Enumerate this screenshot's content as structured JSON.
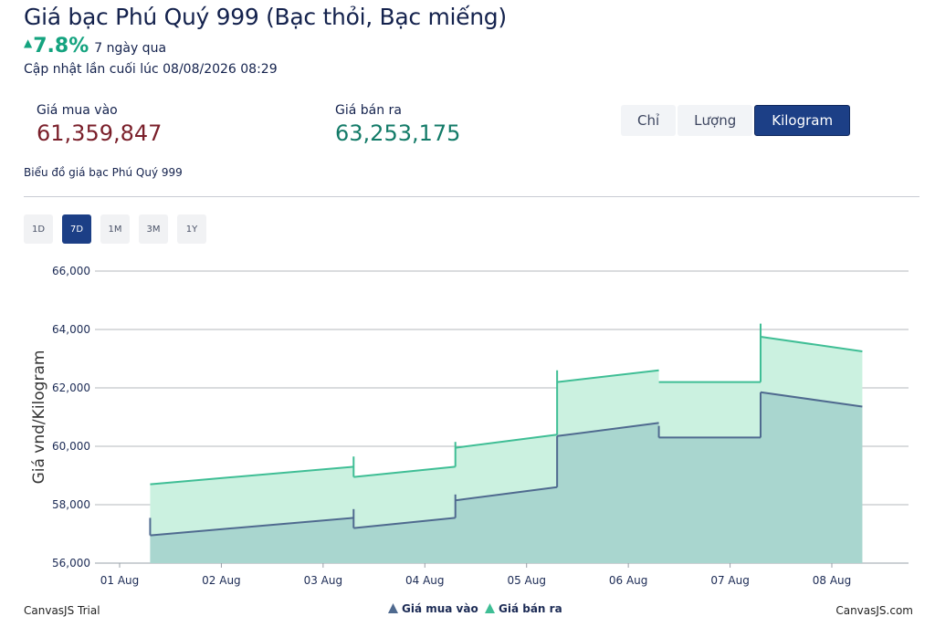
{
  "header": {
    "title": "Giá bạc Phú Quý 999 (Bạc thỏi, Bạc miếng)",
    "change_arrow": "▲",
    "change_pct": "7.8%",
    "change_period": "7 ngày qua",
    "updated": "Cập nhật lần cuối lúc 08/08/2026 08:29"
  },
  "stats": {
    "buy_label": "Giá mua vào",
    "buy_value": "61,359,847",
    "sell_label": "Giá bán ra",
    "sell_value": "63,253,175"
  },
  "units": {
    "options": [
      "Chỉ",
      "Lượng",
      "Kilogram"
    ],
    "selected": "Kilogram"
  },
  "chart_caption": "Biểu đồ giá bạc Phú Quý 999",
  "ranges": {
    "options": [
      "1D",
      "7D",
      "1M",
      "3M",
      "1Y"
    ],
    "selected": "7D"
  },
  "chart_data": {
    "type": "area",
    "x_categories": [
      "01 Aug",
      "02 Aug",
      "03 Aug",
      "04 Aug",
      "05 Aug",
      "06 Aug",
      "07 Aug",
      "08 Aug"
    ],
    "x_range": [
      0,
      7
    ],
    "ylabel": "Giá vnd/Kilogram",
    "y_ticks": [
      "56,000",
      "58,000",
      "60,000",
      "62,000",
      "64,000",
      "66,000"
    ],
    "y_range": [
      56000,
      66000
    ],
    "grid": true,
    "legend_position": "bottom",
    "series": [
      {
        "name": "Giá mua vào",
        "color": "#4f6a8f",
        "fill": "#a9d6cf",
        "points": [
          {
            "x": 0.3,
            "open": 56950,
            "close": 57550,
            "high": 57550
          },
          {
            "x": 2.3,
            "open": 57200,
            "close": 57550,
            "high": 57850
          },
          {
            "x": 3.3,
            "open": 58150,
            "close": 58600,
            "high": 58350
          },
          {
            "x": 4.3,
            "open": 60350,
            "close": 60800,
            "high": 60350
          },
          {
            "x": 5.3,
            "open": 60300,
            "close": 60300,
            "high": 60700
          },
          {
            "x": 6.3,
            "open": 61850,
            "close": 61360,
            "high": 61850
          }
        ]
      },
      {
        "name": "Giá bán ra",
        "color": "#3fbe95",
        "fill": "#cbf1e0",
        "points": [
          {
            "x": 0.3,
            "open": 58700,
            "close": 59300,
            "high": 58700
          },
          {
            "x": 2.3,
            "open": 58950,
            "close": 59300,
            "high": 59650
          },
          {
            "x": 3.3,
            "open": 59950,
            "close": 60400,
            "high": 60150
          },
          {
            "x": 4.3,
            "open": 62200,
            "close": 62600,
            "high": 62600
          },
          {
            "x": 5.3,
            "open": 62200,
            "close": 62200,
            "high": 62200
          },
          {
            "x": 6.3,
            "open": 63750,
            "close": 63250,
            "high": 64200
          }
        ]
      }
    ]
  },
  "footer": {
    "left_credit": "CanvasJS Trial",
    "right_credit": "CanvasJS.com"
  }
}
